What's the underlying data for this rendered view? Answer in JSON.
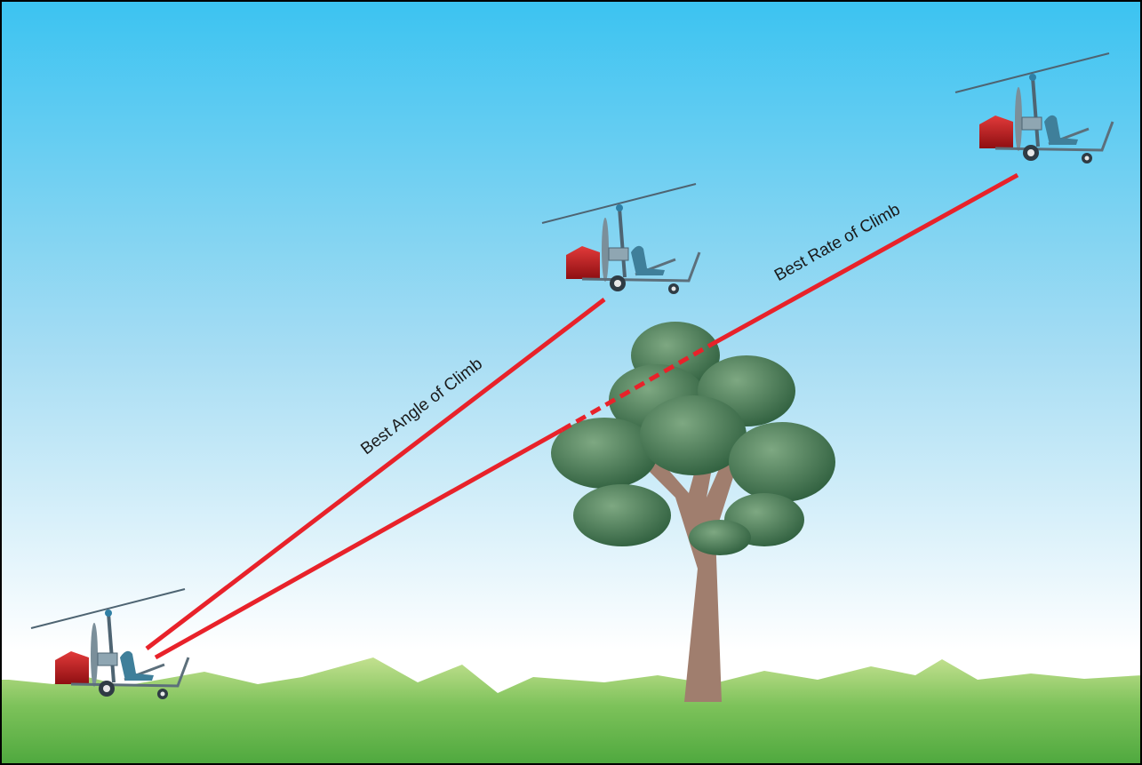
{
  "labels": {
    "angle": "Best Angle of Climb",
    "rate": "Best Rate of Climb"
  }
}
